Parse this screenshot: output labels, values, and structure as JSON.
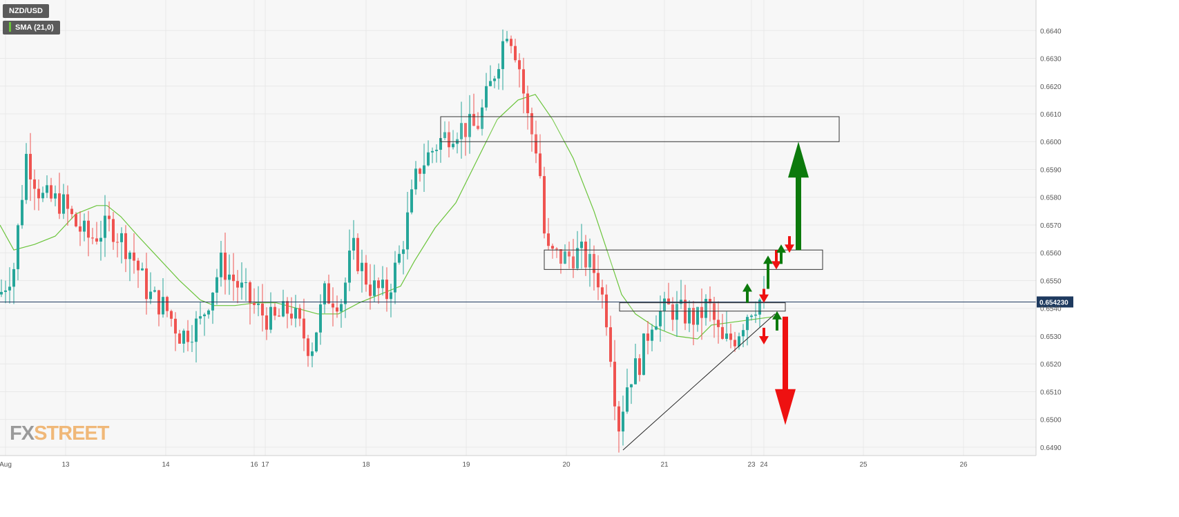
{
  "legend": {
    "symbol": "NZD/USD",
    "indicator": "SMA (21,0)",
    "indicator_color": "#6ac43a"
  },
  "logo": {
    "fx": "FX",
    "street": "STREET"
  },
  "colors": {
    "bull": "#26a69a",
    "bear": "#ef5350",
    "sma": "#6ac43a",
    "arrow_up": "#0c7a0c",
    "arrow_down": "#ee1111",
    "price_tag": "#1e3a5f",
    "grid": "#e8e8e8"
  },
  "chart_data": {
    "type": "candlestick",
    "title": "NZD/USD",
    "ylim": [
      0.6487,
      0.6651
    ],
    "y_ticks": [
      0.649,
      0.65,
      0.651,
      0.652,
      0.653,
      0.654,
      0.655,
      0.656,
      0.657,
      0.658,
      0.659,
      0.66,
      0.661,
      0.662,
      0.663,
      0.664
    ],
    "y_tick_labels": [
      "0.6490",
      "0.6500",
      "0.6510",
      "0.6520",
      "0.6530",
      "0.6540",
      "0.6550",
      "0.6560",
      "0.6570",
      "0.6580",
      "0.6590",
      "0.6600",
      "0.6610",
      "0.6620",
      "0.6630",
      "0.6640"
    ],
    "x_range": [
      0,
      1500
    ],
    "x_ticks": [
      {
        "label": "Aug",
        "x": 8
      },
      {
        "label": "13",
        "x": 95
      },
      {
        "label": "14",
        "x": 240
      },
      {
        "label": "16",
        "x": 368
      },
      {
        "label": "17",
        "x": 384
      },
      {
        "label": "18",
        "x": 530
      },
      {
        "label": "19",
        "x": 675
      },
      {
        "label": "20",
        "x": 820
      },
      {
        "label": "21",
        "x": 962
      },
      {
        "label": "23",
        "x": 1088
      },
      {
        "label": "24",
        "x": 1106
      },
      {
        "label": "25",
        "x": 1250
      },
      {
        "label": "26",
        "x": 1395
      }
    ],
    "current_price": "0.654230",
    "current_value": 0.65423,
    "zones": [
      {
        "x1": 638,
        "x2": 1215,
        "y1": 0.66,
        "y2": 0.6609
      },
      {
        "x1": 788,
        "x2": 1191,
        "y1": 0.6554,
        "y2": 0.6561
      },
      {
        "x1": 897,
        "x2": 1137,
        "y1": 0.6539,
        "y2": 0.6542
      }
    ],
    "trendline": {
      "x1": 902,
      "y1": 0.6489,
      "x2": 1122,
      "y2": 0.6538
    },
    "arrows": [
      {
        "dir": "up",
        "x": 1156,
        "from": 0.6561,
        "to": 0.66,
        "size": "large"
      },
      {
        "dir": "down",
        "x": 1137,
        "from": 0.6537,
        "to": 0.6498,
        "size": "large"
      },
      {
        "dir": "up",
        "x": 1082,
        "from": 0.6542,
        "to": 0.6549,
        "size": "small"
      },
      {
        "dir": "down",
        "x": 1106,
        "from": 0.6547,
        "to": 0.6542,
        "size": "small"
      },
      {
        "dir": "up",
        "x": 1112,
        "from": 0.6547,
        "to": 0.6559,
        "size": "small"
      },
      {
        "dir": "down",
        "x": 1124,
        "from": 0.6561,
        "to": 0.6554,
        "size": "small"
      },
      {
        "dir": "up",
        "x": 1131,
        "from": 0.6556,
        "to": 0.6563,
        "size": "small"
      },
      {
        "dir": "down",
        "x": 1143,
        "from": 0.6566,
        "to": 0.656,
        "size": "small"
      },
      {
        "dir": "down",
        "x": 1106,
        "from": 0.6533,
        "to": 0.6527,
        "size": "small"
      },
      {
        "dir": "up",
        "x": 1125,
        "from": 0.6532,
        "to": 0.6539,
        "size": "small"
      }
    ],
    "sma": [
      [
        0,
        0.657
      ],
      [
        20,
        0.6561
      ],
      [
        50,
        0.6563
      ],
      [
        80,
        0.6566
      ],
      [
        110,
        0.6574
      ],
      [
        140,
        0.6577
      ],
      [
        155,
        0.6577
      ],
      [
        175,
        0.6573
      ],
      [
        200,
        0.6566
      ],
      [
        230,
        0.6558
      ],
      [
        260,
        0.655
      ],
      [
        290,
        0.6543
      ],
      [
        310,
        0.6541
      ],
      [
        340,
        0.6541
      ],
      [
        370,
        0.6542
      ],
      [
        400,
        0.6542
      ],
      [
        430,
        0.654
      ],
      [
        460,
        0.6538
      ],
      [
        490,
        0.6538
      ],
      [
        520,
        0.6542
      ],
      [
        550,
        0.6545
      ],
      [
        580,
        0.6548
      ],
      [
        600,
        0.6557
      ],
      [
        630,
        0.6569
      ],
      [
        660,
        0.6578
      ],
      [
        690,
        0.6593
      ],
      [
        720,
        0.6608
      ],
      [
        750,
        0.6615
      ],
      [
        775,
        0.6617
      ],
      [
        800,
        0.6608
      ],
      [
        830,
        0.6594
      ],
      [
        860,
        0.6575
      ],
      [
        880,
        0.656
      ],
      [
        900,
        0.6545
      ],
      [
        920,
        0.6538
      ],
      [
        950,
        0.6533
      ],
      [
        980,
        0.653
      ],
      [
        1010,
        0.6529
      ],
      [
        1030,
        0.6534
      ],
      [
        1060,
        0.6535
      ],
      [
        1090,
        0.6536
      ],
      [
        1120,
        0.6537
      ]
    ],
    "anchors": [
      [
        0,
        0.6545
      ],
      [
        20,
        0.6555
      ],
      [
        38,
        0.6595
      ],
      [
        60,
        0.658
      ],
      [
        90,
        0.6578
      ],
      [
        110,
        0.657
      ],
      [
        130,
        0.6565
      ],
      [
        160,
        0.657
      ],
      [
        190,
        0.656
      ],
      [
        215,
        0.6545
      ],
      [
        240,
        0.654
      ],
      [
        262,
        0.653
      ],
      [
        290,
        0.6535
      ],
      [
        320,
        0.6556
      ],
      [
        345,
        0.6548
      ],
      [
        370,
        0.654
      ],
      [
        395,
        0.6535
      ],
      [
        420,
        0.654
      ],
      [
        450,
        0.6525
      ],
      [
        470,
        0.6545
      ],
      [
        495,
        0.6543
      ],
      [
        510,
        0.6562
      ],
      [
        535,
        0.6548
      ],
      [
        560,
        0.6545
      ],
      [
        580,
        0.656
      ],
      [
        605,
        0.659
      ],
      [
        635,
        0.66
      ],
      [
        660,
        0.6605
      ],
      [
        690,
        0.6605
      ],
      [
        710,
        0.662
      ],
      [
        735,
        0.6642
      ],
      [
        750,
        0.663
      ],
      [
        765,
        0.6607
      ],
      [
        780,
        0.6595
      ],
      [
        790,
        0.656
      ],
      [
        815,
        0.6558
      ],
      [
        840,
        0.656
      ],
      [
        865,
        0.6552
      ],
      [
        880,
        0.6535
      ],
      [
        895,
        0.6497
      ],
      [
        910,
        0.6515
      ],
      [
        925,
        0.652
      ],
      [
        945,
        0.6537
      ],
      [
        970,
        0.654
      ],
      [
        990,
        0.6538
      ],
      [
        1010,
        0.6536
      ],
      [
        1025,
        0.6542
      ],
      [
        1045,
        0.6527
      ],
      [
        1065,
        0.653
      ],
      [
        1085,
        0.654
      ],
      [
        1100,
        0.6543
      ],
      [
        1110,
        0.6539
      ]
    ]
  }
}
